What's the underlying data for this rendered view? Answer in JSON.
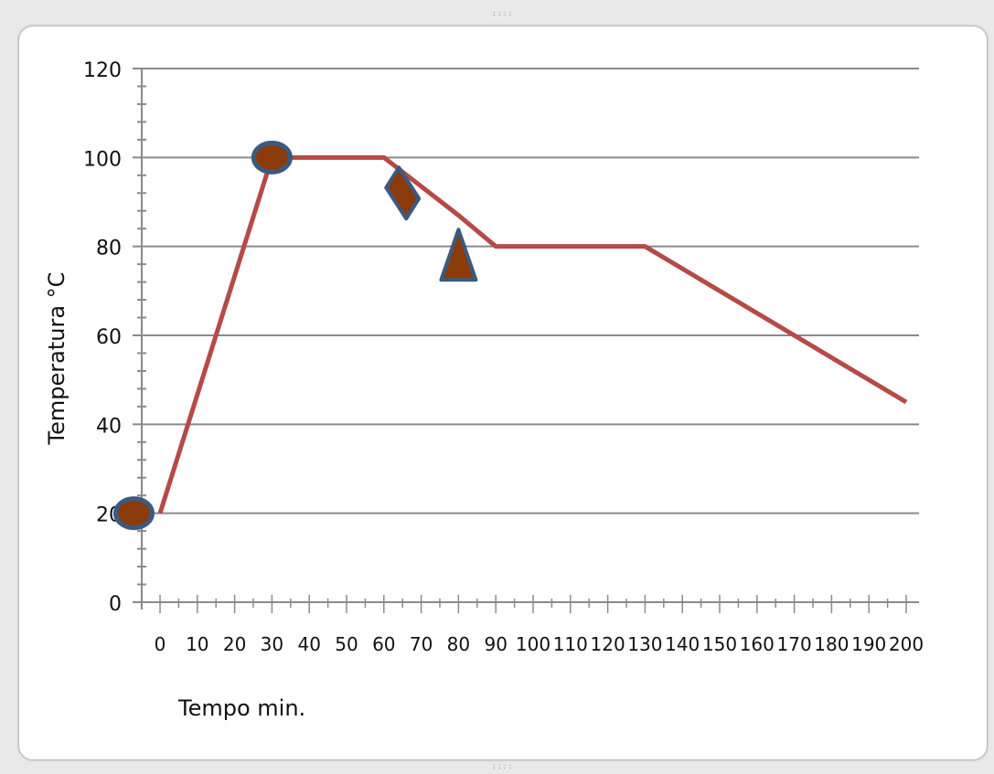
{
  "chart_data": {
    "type": "line",
    "title": "",
    "xlabel": "Tempo min.",
    "ylabel": "Temperatura °C",
    "x_tick_labels": [
      "0",
      "10",
      "20",
      "30",
      "40",
      "50",
      "60",
      "70",
      "80",
      "90",
      "100",
      "110",
      "120",
      "130",
      "140",
      "150",
      "160",
      "170",
      "180",
      "190",
      "200"
    ],
    "y_ticks": [
      0,
      20,
      40,
      60,
      80,
      100,
      120
    ],
    "ylim": [
      0,
      120
    ],
    "grid": true,
    "legend": "none",
    "series": [
      {
        "color": "#b54a46",
        "x": [
          0,
          30,
          60,
          80,
          90,
          130,
          200
        ],
        "y": [
          20,
          100,
          100,
          87,
          80,
          80,
          45
        ]
      }
    ],
    "markers": [
      {
        "shape": "ellipse",
        "x": -7,
        "y": 20,
        "fill": "#8b3a0a",
        "stroke": "#3a5a80"
      },
      {
        "shape": "ellipse",
        "x": 30,
        "y": 100,
        "fill": "#8b3a0a",
        "stroke": "#3a5a80"
      },
      {
        "shape": "diamond",
        "x": 65,
        "y": 92,
        "fill": "#8b3a0a",
        "stroke": "#3a5a80"
      },
      {
        "shape": "triangle",
        "x": 80,
        "y": 77,
        "fill": "#8b3a0a",
        "stroke": "#3a5a80"
      }
    ]
  }
}
